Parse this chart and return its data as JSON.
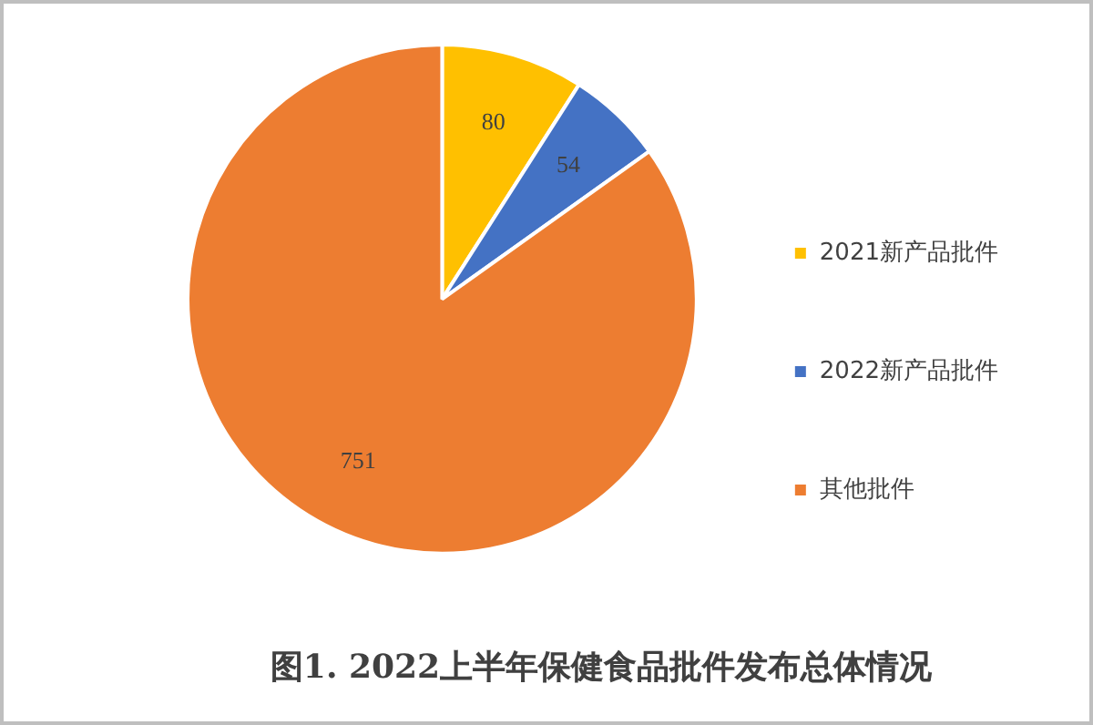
{
  "chart_data": {
    "type": "pie",
    "title": "图1. 2022上半年保健食品批件发布总体情况",
    "categories": [
      "2021新产品批件",
      "2022新产品批件",
      "其他批件"
    ],
    "values": [
      80,
      54,
      751
    ],
    "colors": [
      "#ffc000",
      "#4472c4",
      "#ed7d31"
    ],
    "data_labels": true,
    "legend": "right"
  }
}
